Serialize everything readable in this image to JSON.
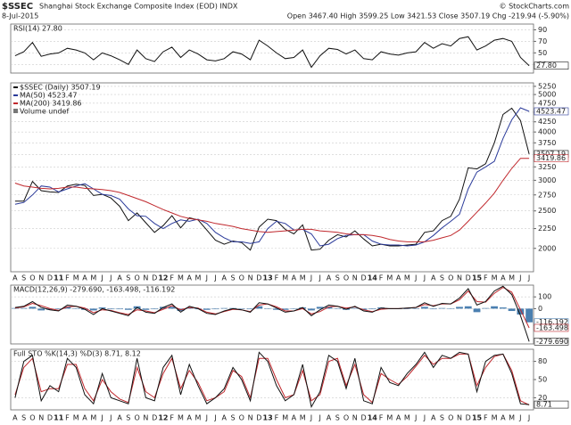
{
  "header": {
    "symbol": "$SSEC",
    "name": "Shanghai Stock Exchange Composite Index (EOD) INDX",
    "date": "8-Jul-2015",
    "source": "© StockCharts.com",
    "quote": "Open 3467.40 High 3599.25 Low 3421.53 Close 3507.19 Chg -219.94 (-5.90%)"
  },
  "chart_data": [
    {
      "type": "line",
      "label": "RSI(14) 27.80",
      "ylim": [
        15,
        100
      ],
      "yticks": [
        30,
        50,
        70,
        90
      ],
      "grid": true,
      "series": [
        {
          "color": "#111111",
          "last_label": "27.80",
          "values": [
            45,
            52,
            68,
            44,
            48,
            50,
            58,
            55,
            50,
            38,
            50,
            45,
            38,
            30,
            55,
            40,
            35,
            52,
            60,
            42,
            55,
            48,
            38,
            36,
            40,
            52,
            48,
            38,
            72,
            62,
            50,
            40,
            42,
            55,
            25,
            45,
            58,
            56,
            48,
            55,
            40,
            38,
            52,
            48,
            46,
            50,
            52,
            68,
            58,
            66,
            62,
            75,
            78,
            55,
            62,
            72,
            75,
            70,
            42,
            27.8
          ]
        }
      ]
    },
    {
      "type": "line",
      "log": true,
      "ylim": [
        1740,
        5360
      ],
      "yticks": [
        2000,
        2250,
        2500,
        2750,
        3000,
        3250,
        3500,
        3750,
        4000,
        4250,
        4500,
        4750,
        5000,
        5250
      ],
      "grid": true,
      "categories": [
        "A",
        "S",
        "O",
        "N",
        "D",
        "11",
        "F",
        "M",
        "A",
        "M",
        "J",
        "J",
        "A",
        "S",
        "O",
        "N",
        "D",
        "12",
        "F",
        "M",
        "A",
        "M",
        "J",
        "J",
        "A",
        "S",
        "O",
        "N",
        "D",
        "13",
        "F",
        "M",
        "A",
        "M",
        "J",
        "J",
        "A",
        "S",
        "O",
        "N",
        "D",
        "14",
        "F",
        "M",
        "A",
        "M",
        "J",
        "J",
        "A",
        "S",
        "O",
        "N",
        "D",
        "15",
        "F",
        "M",
        "A",
        "M",
        "J",
        "J"
      ],
      "legend_extra": "Volume undef",
      "series": [
        {
          "label": "$SSEC (Daily) 3507.19",
          "color": "#111111",
          "last_label": "3507.19",
          "values": [
            2650,
            2650,
            2980,
            2820,
            2800,
            2790,
            2900,
            2930,
            2910,
            2740,
            2760,
            2700,
            2570,
            2360,
            2470,
            2330,
            2200,
            2290,
            2430,
            2260,
            2400,
            2370,
            2230,
            2100,
            2050,
            2090,
            2070,
            1980,
            2270,
            2380,
            2360,
            2240,
            2180,
            2300,
            1980,
            1990,
            2100,
            2170,
            2140,
            2220,
            2115,
            2030,
            2050,
            2030,
            2030,
            2040,
            2050,
            2200,
            2220,
            2360,
            2420,
            2680,
            3230,
            3210,
            3310,
            3750,
            4440,
            4610,
            4280,
            3507.19
          ]
        },
        {
          "label": "MA(50) 4523.47",
          "color": "#2a3a9a",
          "last_label": "4523.47",
          "values": [
            2600,
            2630,
            2750,
            2900,
            2880,
            2800,
            2850,
            2900,
            2940,
            2850,
            2760,
            2740,
            2680,
            2530,
            2430,
            2420,
            2320,
            2250,
            2320,
            2370,
            2350,
            2380,
            2320,
            2200,
            2130,
            2080,
            2080,
            2060,
            2080,
            2250,
            2350,
            2320,
            2230,
            2240,
            2180,
            2030,
            2050,
            2120,
            2160,
            2170,
            2170,
            2090,
            2050,
            2040,
            2040,
            2030,
            2040,
            2080,
            2160,
            2260,
            2350,
            2450,
            2850,
            3150,
            3250,
            3360,
            3850,
            4300,
            4620,
            4523.47
          ]
        },
        {
          "label": "MA(200) 3419.86",
          "color": "#c0282d",
          "last_label": "3419.86",
          "values": [
            2950,
            2900,
            2880,
            2860,
            2850,
            2860,
            2880,
            2880,
            2860,
            2850,
            2840,
            2820,
            2790,
            2740,
            2690,
            2640,
            2580,
            2520,
            2470,
            2420,
            2390,
            2370,
            2350,
            2320,
            2300,
            2280,
            2250,
            2230,
            2210,
            2200,
            2210,
            2220,
            2230,
            2240,
            2240,
            2220,
            2210,
            2200,
            2180,
            2170,
            2170,
            2160,
            2140,
            2110,
            2090,
            2080,
            2080,
            2080,
            2100,
            2130,
            2160,
            2230,
            2350,
            2480,
            2620,
            2780,
            3000,
            3220,
            3420,
            3419.86
          ]
        }
      ]
    },
    {
      "type": "line",
      "label": "MACD(12,26,9) -279.690, -163.498, -116.192",
      "ylim": [
        -300,
        200
      ],
      "yticks": [
        100,
        0
      ],
      "grid": true,
      "series": [
        {
          "kind": "bar",
          "color": "#4a7fb0",
          "last_label": "-116.192",
          "values": [
            5,
            5,
            15,
            -15,
            -10,
            -5,
            15,
            0,
            -10,
            -15,
            10,
            -5,
            -5,
            -10,
            20,
            -10,
            -5,
            15,
            15,
            -20,
            10,
            -5,
            -10,
            -5,
            5,
            5,
            0,
            -5,
            20,
            0,
            -10,
            -10,
            0,
            10,
            -15,
            15,
            15,
            0,
            -10,
            5,
            -10,
            -5,
            10,
            0,
            0,
            0,
            0,
            15,
            -5,
            5,
            0,
            15,
            20,
            -30,
            5,
            20,
            10,
            -20,
            -50,
            -116.192
          ]
        },
        {
          "color": "#c0282d",
          "last_label": "-163.498",
          "values": [
            5,
            15,
            45,
            25,
            0,
            -15,
            15,
            20,
            5,
            -35,
            -10,
            -15,
            -35,
            -50,
            -10,
            -20,
            -35,
            -5,
            25,
            -10,
            10,
            5,
            -30,
            -45,
            -25,
            -5,
            -10,
            -25,
            30,
            40,
            15,
            -20,
            -20,
            0,
            -45,
            -25,
            15,
            20,
            5,
            15,
            -10,
            -25,
            -5,
            0,
            0,
            5,
            10,
            35,
            25,
            40,
            40,
            75,
            150,
            60,
            55,
            130,
            180,
            140,
            -10,
            -163.498
          ]
        },
        {
          "color": "#111111",
          "last_label": "-279.690",
          "values": [
            10,
            20,
            60,
            10,
            -10,
            -20,
            30,
            20,
            -5,
            -50,
            0,
            -20,
            -40,
            -60,
            10,
            -30,
            -40,
            10,
            40,
            -30,
            20,
            0,
            -40,
            -50,
            -20,
            0,
            -10,
            -30,
            50,
            40,
            5,
            -30,
            -20,
            10,
            -60,
            -10,
            30,
            20,
            -5,
            20,
            -20,
            -30,
            5,
            0,
            0,
            5,
            10,
            50,
            20,
            45,
            40,
            90,
            170,
            30,
            60,
            150,
            190,
            120,
            -60,
            -279.69
          ]
        }
      ]
    },
    {
      "type": "line",
      "label": "Full STO %K(14,3) %D(3) 8.71, 8.12",
      "ylim": [
        0,
        100
      ],
      "yticks": [
        20,
        50,
        80
      ],
      "grid": true,
      "categories": [
        "A",
        "S",
        "O",
        "N",
        "D",
        "11",
        "F",
        "M",
        "A",
        "M",
        "J",
        "J",
        "A",
        "S",
        "O",
        "N",
        "D",
        "12",
        "F",
        "M",
        "A",
        "M",
        "J",
        "J",
        "A",
        "S",
        "O",
        "N",
        "D",
        "13",
        "F",
        "M",
        "A",
        "M",
        "J",
        "J",
        "A",
        "S",
        "O",
        "N",
        "D",
        "14",
        "F",
        "M",
        "A",
        "M",
        "J",
        "J",
        "A",
        "S",
        "O",
        "N",
        "D",
        "15",
        "F",
        "M",
        "A",
        "M",
        "J",
        "J"
      ],
      "series": [
        {
          "color": "#c0282d",
          "values": [
            25,
            70,
            85,
            30,
            35,
            35,
            75,
            75,
            35,
            15,
            50,
            30,
            18,
            12,
            70,
            30,
            20,
            60,
            85,
            35,
            65,
            45,
            15,
            20,
            30,
            65,
            55,
            20,
            85,
            85,
            50,
            20,
            25,
            65,
            15,
            25,
            80,
            85,
            40,
            75,
            25,
            12,
            60,
            50,
            42,
            55,
            72,
            90,
            75,
            85,
            85,
            92,
            92,
            40,
            70,
            88,
            92,
            65,
            15,
            8.12
          ]
        },
        {
          "color": "#111111",
          "last_label": "8.71",
          "values": [
            20,
            80,
            90,
            15,
            40,
            30,
            85,
            70,
            25,
            10,
            60,
            20,
            15,
            10,
            85,
            20,
            15,
            70,
            90,
            25,
            75,
            40,
            10,
            20,
            35,
            70,
            50,
            15,
            95,
            80,
            40,
            15,
            25,
            75,
            5,
            30,
            90,
            80,
            35,
            85,
            15,
            10,
            70,
            45,
            40,
            60,
            75,
            95,
            70,
            90,
            85,
            95,
            92,
            30,
            80,
            90,
            92,
            60,
            10,
            8.71
          ]
        }
      ]
    }
  ]
}
